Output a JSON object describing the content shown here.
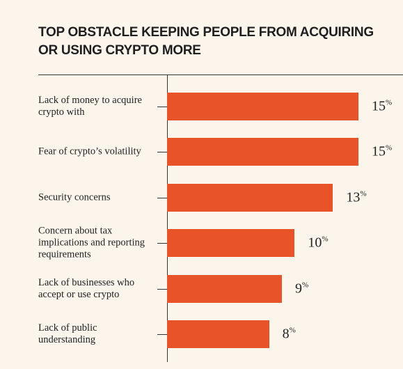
{
  "chart_data": {
    "type": "bar",
    "orientation": "horizontal",
    "title": "TOP OBSTACLE KEEPING PEOPLE FROM ACQUIRING OR USING CRYPTO MORE",
    "categories": [
      "Lack of money to acquire crypto with",
      "Fear of crypto’s volatility",
      "Security concerns",
      "Concern about tax implications and reporting requirements",
      "Lack of businesses who accept or use crypto",
      "Lack of public understanding"
    ],
    "values": [
      15,
      15,
      13,
      10,
      9,
      8
    ],
    "value_labels": [
      "15%",
      "15%",
      "13%",
      "10%",
      "9%",
      "8%"
    ],
    "color": "#e8532a",
    "xlim": [
      0,
      15
    ]
  }
}
